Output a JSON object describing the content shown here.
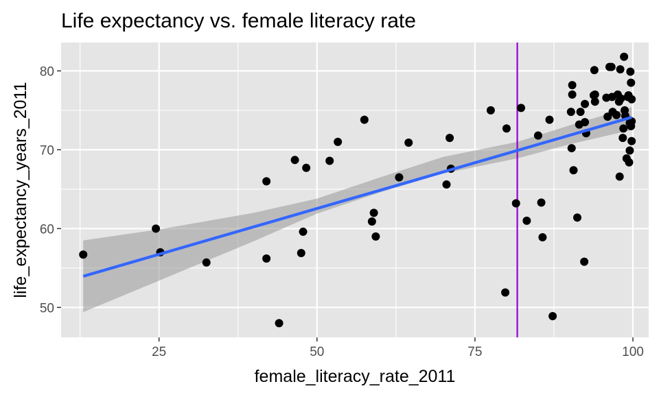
{
  "chart_data": {
    "type": "scatter",
    "title": "Life expectancy vs. female literacy rate",
    "xlabel": "female_literacy_rate_2011",
    "ylabel": "life_expectancy_years_2011",
    "xlim": [
      9.5,
      102.5
    ],
    "ylim": [
      46.2,
      83.6
    ],
    "x_ticks": [
      25,
      50,
      75,
      100
    ],
    "y_ticks": [
      50,
      60,
      70,
      80
    ],
    "x_tick_labels": [
      "25",
      "50",
      "75",
      "100"
    ],
    "y_tick_labels": [
      "50",
      "60",
      "70",
      "80"
    ],
    "grid": true,
    "legend": "none",
    "colors": {
      "panel": "#e5e5e5",
      "grid": "#ffffff",
      "points": "#000000",
      "fit_line": "#3366ff",
      "confidence_band": "#999999",
      "vline": "#9400d3"
    },
    "vline": {
      "x": 81.7
    },
    "fit": {
      "x_range": [
        13.0,
        99.8
      ],
      "intercept": 50.93,
      "slope": 0.2323,
      "band": [
        [
          13.0,
          49.4,
          58.5
        ],
        [
          25.0,
          53.4,
          59.9
        ],
        [
          40.0,
          58.4,
          62.0
        ],
        [
          50.0,
          61.9,
          63.8
        ],
        [
          60.0,
          64.6,
          66.5
        ],
        [
          70.0,
          67.0,
          69.1
        ],
        [
          81.7,
          68.9,
          71.0
        ],
        [
          90.0,
          70.7,
          73.1
        ],
        [
          99.8,
          72.5,
          75.4
        ]
      ]
    },
    "points": [
      [
        13.0,
        56.7
      ],
      [
        24.5,
        60.0
      ],
      [
        25.2,
        57.0
      ],
      [
        32.5,
        55.7
      ],
      [
        42.0,
        66.0
      ],
      [
        42.0,
        56.2
      ],
      [
        44.0,
        48.0
      ],
      [
        46.5,
        68.7
      ],
      [
        47.5,
        56.9
      ],
      [
        47.8,
        59.6
      ],
      [
        48.3,
        67.7
      ],
      [
        52.0,
        68.6
      ],
      [
        53.3,
        71.0
      ],
      [
        57.5,
        73.8
      ],
      [
        58.7,
        60.9
      ],
      [
        59.0,
        62.0
      ],
      [
        59.3,
        59.0
      ],
      [
        63.0,
        66.5
      ],
      [
        64.5,
        70.9
      ],
      [
        70.5,
        65.6
      ],
      [
        71.0,
        71.5
      ],
      [
        71.2,
        67.6
      ],
      [
        77.5,
        75.0
      ],
      [
        79.8,
        51.9
      ],
      [
        80.0,
        72.7
      ],
      [
        81.5,
        63.2
      ],
      [
        82.3,
        75.3
      ],
      [
        83.2,
        61.0
      ],
      [
        85.0,
        71.8
      ],
      [
        85.5,
        63.3
      ],
      [
        85.7,
        58.9
      ],
      [
        86.8,
        73.8
      ],
      [
        87.3,
        48.9
      ],
      [
        90.2,
        74.8
      ],
      [
        90.3,
        70.2
      ],
      [
        90.4,
        77.0
      ],
      [
        90.4,
        78.2
      ],
      [
        90.6,
        67.4
      ],
      [
        91.2,
        61.4
      ],
      [
        91.5,
        73.2
      ],
      [
        91.7,
        74.8
      ],
      [
        92.3,
        55.8
      ],
      [
        92.4,
        73.5
      ],
      [
        92.4,
        75.8
      ],
      [
        92.6,
        72.1
      ],
      [
        93.8,
        76.9
      ],
      [
        93.9,
        80.1
      ],
      [
        94.0,
        77.0
      ],
      [
        94.0,
        76.1
      ],
      [
        95.8,
        76.6
      ],
      [
        96.0,
        74.2
      ],
      [
        96.3,
        80.5
      ],
      [
        96.6,
        80.5
      ],
      [
        96.7,
        76.7
      ],
      [
        96.8,
        74.8
      ],
      [
        97.4,
        74.4
      ],
      [
        97.6,
        77.0
      ],
      [
        97.8,
        76.1
      ],
      [
        97.9,
        66.6
      ],
      [
        98.0,
        80.2
      ],
      [
        98.1,
        76.5
      ],
      [
        98.4,
        71.5
      ],
      [
        98.5,
        72.7
      ],
      [
        98.6,
        81.8
      ],
      [
        98.7,
        75.0
      ],
      [
        98.8,
        74.3
      ],
      [
        99.0,
        68.9
      ],
      [
        99.2,
        76.7
      ],
      [
        99.3,
        76.9
      ],
      [
        99.4,
        68.4
      ],
      [
        99.5,
        73.4
      ],
      [
        99.5,
        69.9
      ],
      [
        99.6,
        79.9
      ],
      [
        99.7,
        78.5
      ],
      [
        99.7,
        73.0
      ],
      [
        99.8,
        73.6
      ],
      [
        99.8,
        71.1
      ],
      [
        99.8,
        76.4
      ]
    ]
  }
}
